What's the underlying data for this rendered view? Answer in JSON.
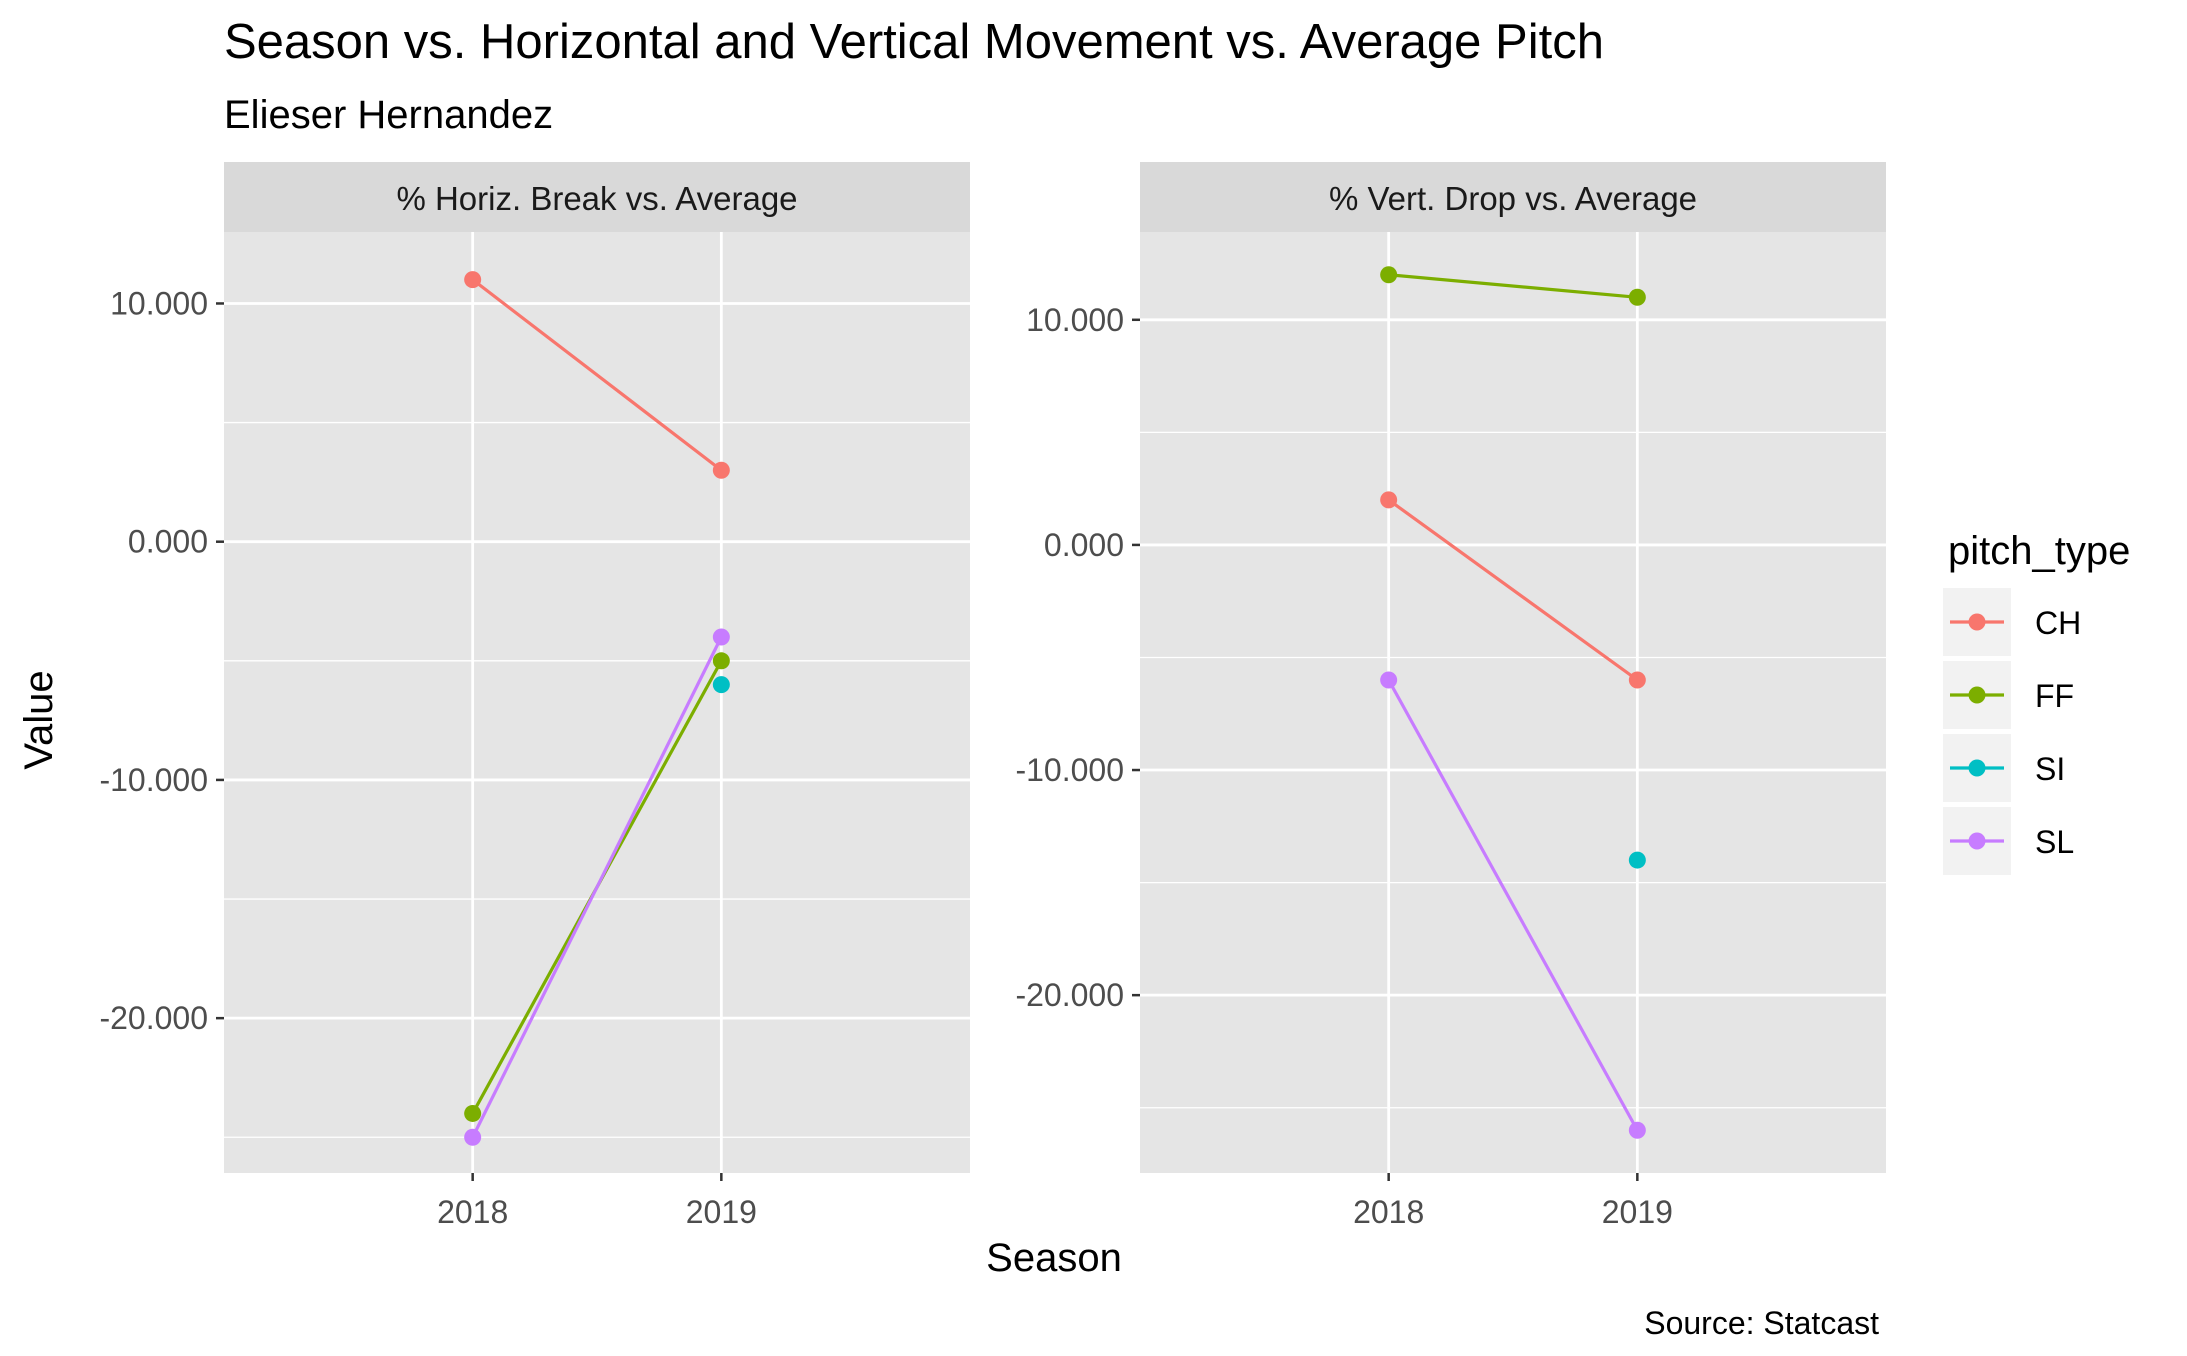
{
  "title": "Season vs. Horizontal and Vertical Movement vs. Average Pitch",
  "subtitle": "Elieser Hernandez",
  "xlabel": "Season",
  "ylabel": "Value",
  "caption": "Source: Statcast",
  "legend": {
    "title": "pitch_type",
    "placement": "right",
    "items": [
      {
        "label": "CH",
        "color": "#F8766D"
      },
      {
        "label": "FF",
        "color": "#7CAE00"
      },
      {
        "label": "SI",
        "color": "#00BFC4"
      },
      {
        "label": "SL",
        "color": "#C77CFF"
      }
    ]
  },
  "colors": {
    "panel_bg": "#E5E5E5",
    "strip_bg": "#D9D9D9",
    "grid": "#FFFFFF",
    "tick_text": "#4D4D4D",
    "axis_text": "#000000"
  },
  "chart_data": [
    {
      "type": "line",
      "panel_title": "% Horiz. Break vs. Average",
      "categories": [
        "2018",
        "2019"
      ],
      "ylim": [
        -26.5,
        13.0
      ],
      "y_ticks": [
        10,
        0,
        -10,
        -20
      ],
      "y_tick_labels": [
        "10.000",
        "0.000",
        "-10.000",
        "-20.000"
      ],
      "grid": true,
      "series": [
        {
          "name": "CH",
          "values": [
            11,
            3
          ]
        },
        {
          "name": "FF",
          "values": [
            -24,
            -5
          ]
        },
        {
          "name": "SI",
          "values": [
            null,
            -6
          ]
        },
        {
          "name": "SL",
          "values": [
            -25,
            -4
          ]
        }
      ]
    },
    {
      "type": "line",
      "panel_title": "% Vert. Drop vs. Average",
      "categories": [
        "2018",
        "2019"
      ],
      "ylim": [
        -27.9,
        13.9
      ],
      "y_ticks": [
        10,
        0,
        -10,
        -20
      ],
      "y_tick_labels": [
        "10.000",
        "0.000",
        "-10.000",
        "-20.000"
      ],
      "grid": true,
      "series": [
        {
          "name": "CH",
          "values": [
            2,
            -6
          ]
        },
        {
          "name": "FF",
          "values": [
            12,
            11
          ]
        },
        {
          "name": "SI",
          "values": [
            null,
            -14
          ]
        },
        {
          "name": "SL",
          "values": [
            -6,
            -26
          ]
        }
      ]
    }
  ]
}
